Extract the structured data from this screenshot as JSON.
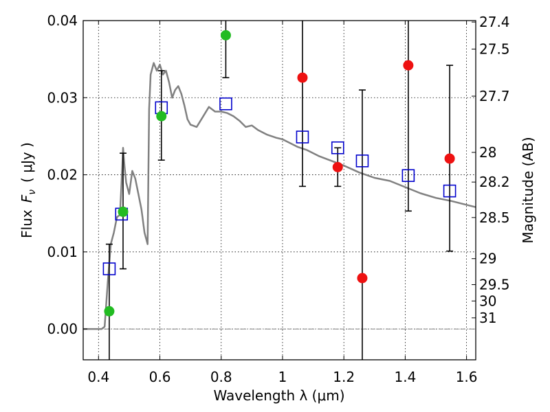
{
  "chart_data": {
    "type": "scatter",
    "xlabel": "Wavelength  λ (μm)",
    "ylabel_left": "Flux",
    "ylabel_left_symbol": "F",
    "ylabel_left_subscript": "ν",
    "ylabel_left_unit": "( μJy )",
    "ylabel_right": "Magnitude (AB)",
    "xlim": [
      0.35,
      1.63
    ],
    "ylim": [
      -0.004,
      0.04
    ],
    "x_ticks": [
      0.4,
      0.6,
      0.8,
      1.0,
      1.2,
      1.4,
      1.6
    ],
    "x_tick_labels": [
      "0.4",
      "0.6",
      "0.8",
      "1",
      "1.2",
      "1.4",
      "1.6"
    ],
    "y_ticks": [
      0.0,
      0.01,
      0.02,
      0.03,
      0.04
    ],
    "y_tick_labels": [
      "0.00",
      "0.01",
      "0.02",
      "0.03",
      "0.04"
    ],
    "right_ticks": [
      {
        "mag": 27.4,
        "label": "27.4"
      },
      {
        "mag": 27.5,
        "label": "27.5"
      },
      {
        "mag": 27.7,
        "label": "27.7"
      },
      {
        "mag": 28.0,
        "label": "28"
      },
      {
        "mag": 28.2,
        "label": "28.2"
      },
      {
        "mag": 28.5,
        "label": "28.5"
      },
      {
        "mag": 29.0,
        "label": "29"
      },
      {
        "mag": 29.5,
        "label": "29.5"
      },
      {
        "mag": 30.0,
        "label": "30"
      },
      {
        "mag": 31.0,
        "label": "31"
      }
    ],
    "zero_line": 0.0,
    "colors": {
      "model": "#808080",
      "green": "#22bb22",
      "red": "#ee1111",
      "square": "#0000cc",
      "errorbar": "#000000"
    },
    "model_spectrum": [
      [
        0.35,
        0.0
      ],
      [
        0.41,
        0.0
      ],
      [
        0.42,
        0.0003
      ],
      [
        0.43,
        0.006
      ],
      [
        0.44,
        0.011
      ],
      [
        0.45,
        0.0125
      ],
      [
        0.46,
        0.0145
      ],
      [
        0.47,
        0.0148
      ],
      [
        0.475,
        0.019
      ],
      [
        0.48,
        0.0235
      ],
      [
        0.485,
        0.021
      ],
      [
        0.49,
        0.019
      ],
      [
        0.5,
        0.0175
      ],
      [
        0.51,
        0.0205
      ],
      [
        0.52,
        0.0195
      ],
      [
        0.53,
        0.0175
      ],
      [
        0.54,
        0.0155
      ],
      [
        0.55,
        0.0125
      ],
      [
        0.56,
        0.011
      ],
      [
        0.565,
        0.0285
      ],
      [
        0.57,
        0.033
      ],
      [
        0.58,
        0.0345
      ],
      [
        0.59,
        0.0335
      ],
      [
        0.6,
        0.0343
      ],
      [
        0.61,
        0.033
      ],
      [
        0.62,
        0.0335
      ],
      [
        0.63,
        0.032
      ],
      [
        0.64,
        0.03
      ],
      [
        0.65,
        0.031
      ],
      [
        0.66,
        0.0315
      ],
      [
        0.67,
        0.0305
      ],
      [
        0.68,
        0.029
      ],
      [
        0.69,
        0.0272
      ],
      [
        0.7,
        0.0265
      ],
      [
        0.72,
        0.0262
      ],
      [
        0.74,
        0.0275
      ],
      [
        0.76,
        0.0288
      ],
      [
        0.78,
        0.0282
      ],
      [
        0.8,
        0.0282
      ],
      [
        0.82,
        0.028
      ],
      [
        0.84,
        0.0276
      ],
      [
        0.86,
        0.027
      ],
      [
        0.88,
        0.0262
      ],
      [
        0.9,
        0.0264
      ],
      [
        0.92,
        0.0258
      ],
      [
        0.95,
        0.0252
      ],
      [
        0.98,
        0.0248
      ],
      [
        1.0,
        0.0246
      ],
      [
        1.02,
        0.0242
      ],
      [
        1.05,
        0.0236
      ],
      [
        1.08,
        0.0232
      ],
      [
        1.12,
        0.0224
      ],
      [
        1.16,
        0.0218
      ],
      [
        1.2,
        0.0212
      ],
      [
        1.25,
        0.0203
      ],
      [
        1.3,
        0.0196
      ],
      [
        1.35,
        0.0192
      ],
      [
        1.4,
        0.0184
      ],
      [
        1.45,
        0.0176
      ],
      [
        1.5,
        0.017
      ],
      [
        1.55,
        0.0166
      ],
      [
        1.6,
        0.0161
      ],
      [
        1.63,
        0.0158
      ]
    ],
    "squares": [
      {
        "x": 0.435,
        "y": 0.0078
      },
      {
        "x": 0.475,
        "y": 0.0149
      },
      {
        "x": 0.605,
        "y": 0.0287
      },
      {
        "x": 0.815,
        "y": 0.0292
      },
      {
        "x": 1.065,
        "y": 0.0249
      },
      {
        "x": 1.18,
        "y": 0.0235
      },
      {
        "x": 1.26,
        "y": 0.0218
      },
      {
        "x": 1.41,
        "y": 0.0199
      },
      {
        "x": 1.545,
        "y": 0.0179
      }
    ],
    "points": [
      {
        "x": 0.435,
        "y": 0.0023,
        "color": "green",
        "ylo": -0.006,
        "yhi": 0.011
      },
      {
        "x": 0.48,
        "y": 0.0152,
        "color": "green",
        "ylo": 0.0078,
        "yhi": 0.0228
      },
      {
        "x": 0.605,
        "y": 0.0276,
        "color": "green",
        "ylo": 0.0219,
        "yhi": 0.0335
      },
      {
        "x": 0.815,
        "y": 0.0381,
        "color": "green",
        "ylo": 0.0326,
        "yhi": 0.045
      },
      {
        "x": 1.065,
        "y": 0.0326,
        "color": "red",
        "ylo": 0.0185,
        "yhi": 0.047
      },
      {
        "x": 1.18,
        "y": 0.021,
        "color": "red",
        "ylo": 0.0185,
        "yhi": 0.0235
      },
      {
        "x": 1.26,
        "y": 0.0066,
        "color": "red",
        "ylo": -0.006,
        "yhi": 0.031
      },
      {
        "x": 1.41,
        "y": 0.0342,
        "color": "red",
        "ylo": 0.0153,
        "yhi": 0.053
      },
      {
        "x": 1.545,
        "y": 0.0221,
        "color": "red",
        "ylo": 0.0101,
        "yhi": 0.0342
      }
    ]
  }
}
